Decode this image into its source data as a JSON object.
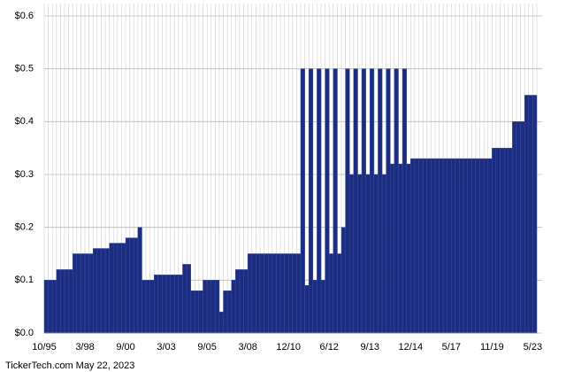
{
  "chart_data": {
    "type": "bar",
    "footer": "TickerTech.com  May 22, 2023",
    "color": "#1c2c80",
    "grid": true,
    "categories": [
      "10/95",
      null,
      null,
      null,
      null,
      null,
      null,
      null,
      null,
      null,
      "3/98",
      null,
      null,
      null,
      null,
      null,
      null,
      null,
      null,
      null,
      "9/00",
      null,
      null,
      null,
      null,
      null,
      null,
      null,
      null,
      null,
      "3/03",
      null,
      null,
      null,
      null,
      null,
      null,
      null,
      null,
      null,
      "9/05",
      null,
      null,
      null,
      null,
      null,
      null,
      null,
      null,
      null,
      "3/08",
      null,
      null,
      null,
      null,
      null,
      null,
      null,
      null,
      null,
      "12/10",
      null,
      null,
      null,
      null,
      null,
      null,
      null,
      null,
      null,
      "6/12",
      null,
      null,
      null,
      null,
      null,
      null,
      null,
      null,
      null,
      "9/13",
      null,
      null,
      null,
      null,
      null,
      null,
      null,
      null,
      null,
      "12/14",
      null,
      null,
      null,
      null,
      null,
      null,
      null,
      null,
      null,
      "5/17",
      null,
      null,
      null,
      null,
      null,
      null,
      null,
      null,
      null,
      "11/19",
      null,
      null,
      null,
      null,
      null,
      null,
      null,
      null,
      null,
      "5/23"
    ],
    "values": [
      0.1,
      0.1,
      0.1,
      0.12,
      0.12,
      0.12,
      0.12,
      0.15,
      0.15,
      0.15,
      0.15,
      0.15,
      0.16,
      0.16,
      0.16,
      0.16,
      0.17,
      0.17,
      0.17,
      0.17,
      0.18,
      0.18,
      0.18,
      0.2,
      0.1,
      0.1,
      0.1,
      0.11,
      0.11,
      0.11,
      0.11,
      0.11,
      0.11,
      0.11,
      0.13,
      0.13,
      0.08,
      0.08,
      0.08,
      0.1,
      0.1,
      0.1,
      0.1,
      0.04,
      0.08,
      0.08,
      0.1,
      0.12,
      0.12,
      0.12,
      0.15,
      0.15,
      0.15,
      0.15,
      0.15,
      0.15,
      0.15,
      0.15,
      0.15,
      0.15,
      0.15,
      0.15,
      0.15,
      0.5,
      0.09,
      0.5,
      0.1,
      0.5,
      0.1,
      0.5,
      0.15,
      0.5,
      0.15,
      0.2,
      0.5,
      0.3,
      0.5,
      0.3,
      0.5,
      0.3,
      0.5,
      0.3,
      0.5,
      0.3,
      0.5,
      0.32,
      0.5,
      0.32,
      0.5,
      0.32,
      0.33,
      0.33,
      0.33,
      0.33,
      0.33,
      0.33,
      0.33,
      0.33,
      0.33,
      0.33,
      0.33,
      0.33,
      0.33,
      0.33,
      0.33,
      0.33,
      0.33,
      0.33,
      0.33,
      0.33,
      0.35,
      0.35,
      0.35,
      0.35,
      0.35,
      0.4,
      0.4,
      0.4,
      0.45,
      0.45,
      0.45
    ],
    "ylim": [
      0,
      0.6
    ],
    "yticks": [
      {
        "value": 0,
        "label": "$0.0"
      },
      {
        "value": 0.1,
        "label": "$0.1"
      },
      {
        "value": 0.2,
        "label": "$0.2"
      },
      {
        "value": 0.3,
        "label": "$0.3"
      },
      {
        "value": 0.4,
        "label": "$0.4"
      },
      {
        "value": 0.5,
        "label": "$0.5"
      },
      {
        "value": 0.6,
        "label": "$0.6"
      }
    ]
  }
}
